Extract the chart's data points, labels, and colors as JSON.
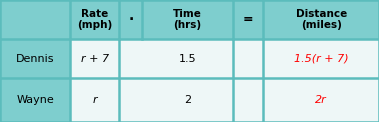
{
  "header_bg": "#7ecece",
  "row_bg": "#eef7f7",
  "border_color": "#5bbcbc",
  "distance_color": "#ff0000",
  "normal_color": "#000000",
  "header_label": "Rate\n(mph)",
  "header_time": "Time\n(hrs)",
  "header_distance": "Distance\n(miles)",
  "header_dot": "·",
  "header_equals": "=",
  "row1_name": "Dennis",
  "row1_rate": "r + 7",
  "row1_time": "1.5",
  "row1_distance": "1.5(r + 7)",
  "row2_name": "Wayne",
  "row2_rate": "r",
  "row2_time": "2",
  "row2_distance": "2r",
  "figsize": [
    3.79,
    1.22
  ],
  "dpi": 100,
  "col_bounds": [
    0.0,
    0.185,
    0.415,
    0.555,
    0.755,
    1.0
  ],
  "row_bounds": [
    0.0,
    0.36,
    0.68,
    1.0
  ],
  "lw": 1.8
}
